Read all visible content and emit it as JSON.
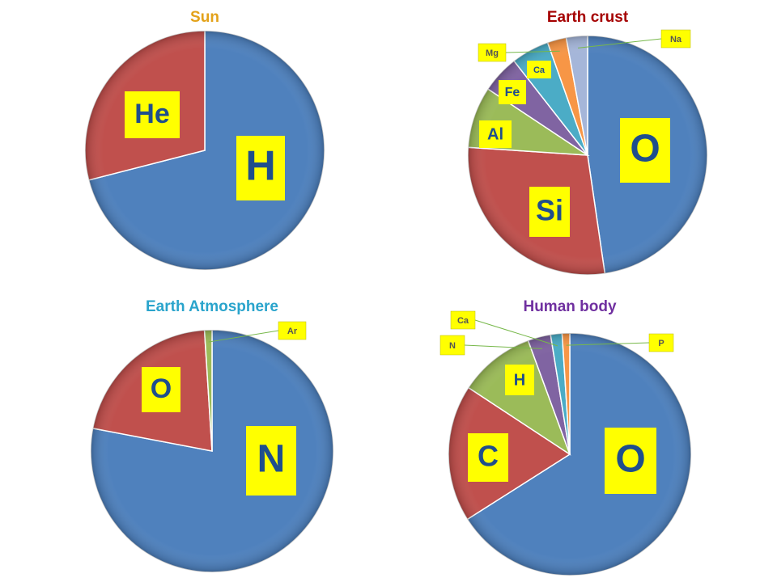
{
  "chart_data": [
    {
      "type": "pie",
      "title": "Sun",
      "title_color": "#e3a21a",
      "categories": [
        "H",
        "He"
      ],
      "values": [
        71,
        29
      ],
      "colors": [
        "#4f81bd",
        "#c0504d"
      ]
    },
    {
      "type": "pie",
      "title": "Earth crust",
      "title_color": "#a50000",
      "categories": [
        "O",
        "Si",
        "Al",
        "Fe",
        "Ca",
        "Mg",
        "Na"
      ],
      "values": [
        46.6,
        27.7,
        8.1,
        5,
        5,
        2.5,
        2.8
      ],
      "colors": [
        "#4f81bd",
        "#c0504d",
        "#9bbb59",
        "#8064a2",
        "#4bacc6",
        "#f79646",
        "#a5b6d9"
      ]
    },
    {
      "type": "pie",
      "title": "Earth Atmosphere",
      "title_color": "#2aa4cc",
      "categories": [
        "N",
        "O",
        "Ar"
      ],
      "values": [
        78,
        21,
        1
      ],
      "colors": [
        "#4f81bd",
        "#c0504d",
        "#9bbb59"
      ]
    },
    {
      "type": "pie",
      "title": "Human body",
      "title_color": "#7030a0",
      "categories": [
        "O",
        "C",
        "H",
        "N",
        "Ca",
        "P"
      ],
      "values": [
        65,
        18,
        10,
        3,
        1.5,
        1
      ],
      "colors": [
        "#4f81bd",
        "#c0504d",
        "#9bbb59",
        "#8064a2",
        "#4bacc6",
        "#f79646"
      ]
    }
  ]
}
